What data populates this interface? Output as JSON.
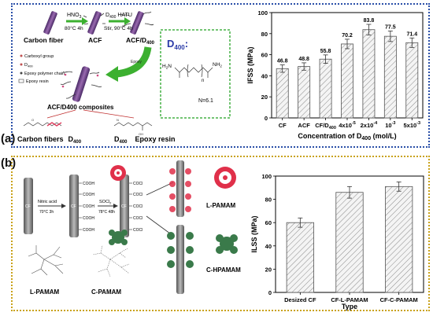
{
  "panels": {
    "a_label": "(a)",
    "b_label": "(b)"
  },
  "scheme_a": {
    "hno3_a": "HNO",
    "hno3_b": "3",
    "hno3_cond": "80°C 4h",
    "reagent_a": "D",
    "reagent_a_sub": "400",
    "reagent_b": " HATU",
    "reagent_cond": "Stir, 90°C 4h",
    "carbon_fiber": "Carbon fiber",
    "acf": "ACF",
    "acf_d400": "ACF/D",
    "acf_d400_sub": "400",
    "epoxy_arrow": "Epoxy",
    "legend": [
      "Carboxyl group",
      "D",
      "Epoxy polymer chain",
      "Epoxy resin"
    ],
    "legend_d_sub": "400",
    "composites": "ACF/D400 composites",
    "bottom_cf": "Carbon fibers",
    "bottom_d400_1": "D",
    "bottom_d400_1_sub": "400",
    "bottom_d400_2": "D",
    "bottom_d400_2_sub": "400",
    "bottom_epoxy": "Epoxy resin",
    "d400_title": "D",
    "d400_title_sub": "400",
    "d400_colon": ":",
    "d400_h2n": "H",
    "d400_h2n_sub": "2",
    "d400_h2n_n": "N",
    "d400_nh2": "NH",
    "d400_nh2_sub": "2",
    "d400_n": "n",
    "d400_nval": "N=6.1"
  },
  "scheme_b": {
    "nitric": "Nitric acid",
    "nitric_cond": "70°C 3h",
    "socl": "SOCl",
    "socl_sub": "2",
    "socl_cond": "78°C 48h",
    "cf_a": "CF",
    "cf_b": "CF",
    "cf_c": "CF",
    "cooh": "COOH",
    "cocl": "COCl",
    "l_pamam_right": "L-PAMAM",
    "c_hpamam_right": "C-HPAMAM",
    "l_pamam_bottom": "L-PAMAM",
    "c_pamam_bottom": "C-PAMAM"
  },
  "colors": {
    "panel_a_border": "#2a4fa8",
    "panel_b_border": "#c9a21a",
    "fiber": "#7a4a8c",
    "arrow_green": "#3cb030",
    "pamam_red": "#e0304a",
    "hpamam_green": "#3a7a4a",
    "d400_box": "#45b045"
  },
  "chart_data": [
    {
      "type": "bar",
      "title": "",
      "xlabel": "Concentration of D",
      "xlabel_sub": "400",
      "xlabel_unit": " (mol/L)",
      "ylabel": "IFSS (MPa)",
      "ylim": [
        0,
        100
      ],
      "yticks": [
        0,
        20,
        40,
        60,
        80,
        100
      ],
      "categories": [
        {
          "a": "CF",
          "sub": ""
        },
        {
          "a": "ACF",
          "sub": ""
        },
        {
          "a": "CF/D",
          "sub": "400"
        },
        {
          "a": "4x10",
          "sup": "-5"
        },
        {
          "a": "2x10",
          "sup": "-4"
        },
        {
          "a": "10",
          "sup": "-3"
        },
        {
          "a": "5x10",
          "sup": "-3"
        }
      ],
      "values": [
        46.8,
        48.8,
        55.8,
        70.2,
        83.8,
        77.5,
        71.4
      ],
      "value_labels": [
        "46.8",
        "48.8",
        "55.8",
        "70.2",
        "83.8",
        "77.5",
        "71.4"
      ],
      "errors": [
        3.5,
        3.5,
        4,
        4.5,
        5,
        5,
        4.5
      ],
      "grid": false
    },
    {
      "type": "bar",
      "title": "",
      "xlabel": "Type",
      "ylabel": "ILSS (MPa)",
      "ylim": [
        0,
        100
      ],
      "yticks": [
        0,
        20,
        40,
        60,
        80,
        100
      ],
      "categories": [
        "Desized CF",
        "CF-L-PAMAM",
        "CF-C-PAMAM"
      ],
      "values": [
        60,
        86,
        91
      ],
      "errors": [
        4,
        5,
        4
      ],
      "grid": false
    }
  ]
}
